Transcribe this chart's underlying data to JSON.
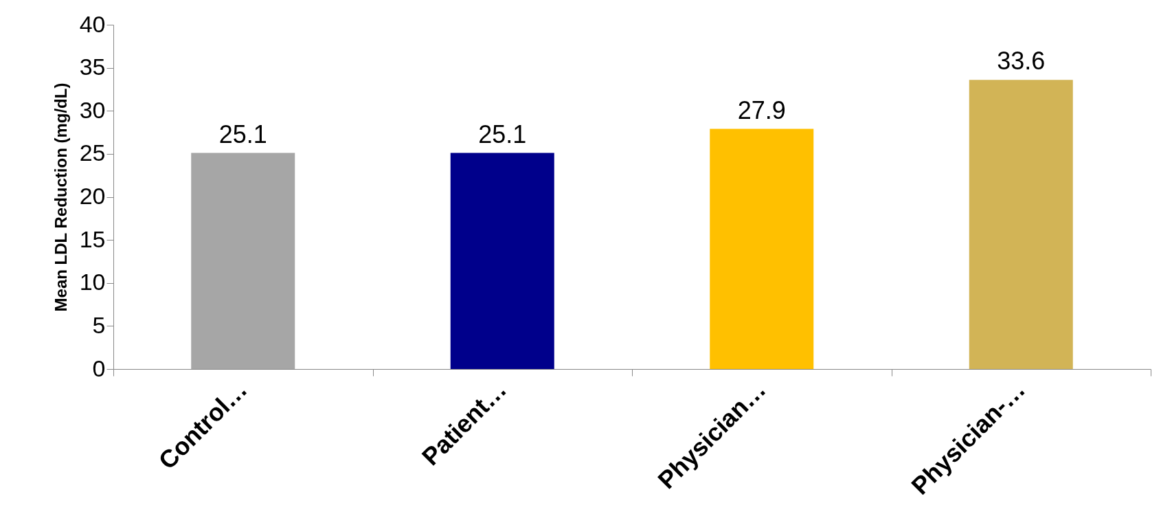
{
  "chart_data": {
    "type": "bar",
    "ylabel": "Mean LDL Reduction (mg/dL)",
    "categories": [
      "Control…",
      "Patient…",
      "Physician…",
      "Physician-…"
    ],
    "values": [
      25.1,
      25.1,
      27.9,
      33.6
    ],
    "colors": [
      "#a6a6a6",
      "#00008b",
      "#ffc000",
      "#d2b456"
    ],
    "ylim": [
      0,
      40
    ],
    "yticks": [
      0,
      5,
      10,
      15,
      20,
      25,
      30,
      35,
      40
    ],
    "grid": false,
    "data_labels": true
  }
}
